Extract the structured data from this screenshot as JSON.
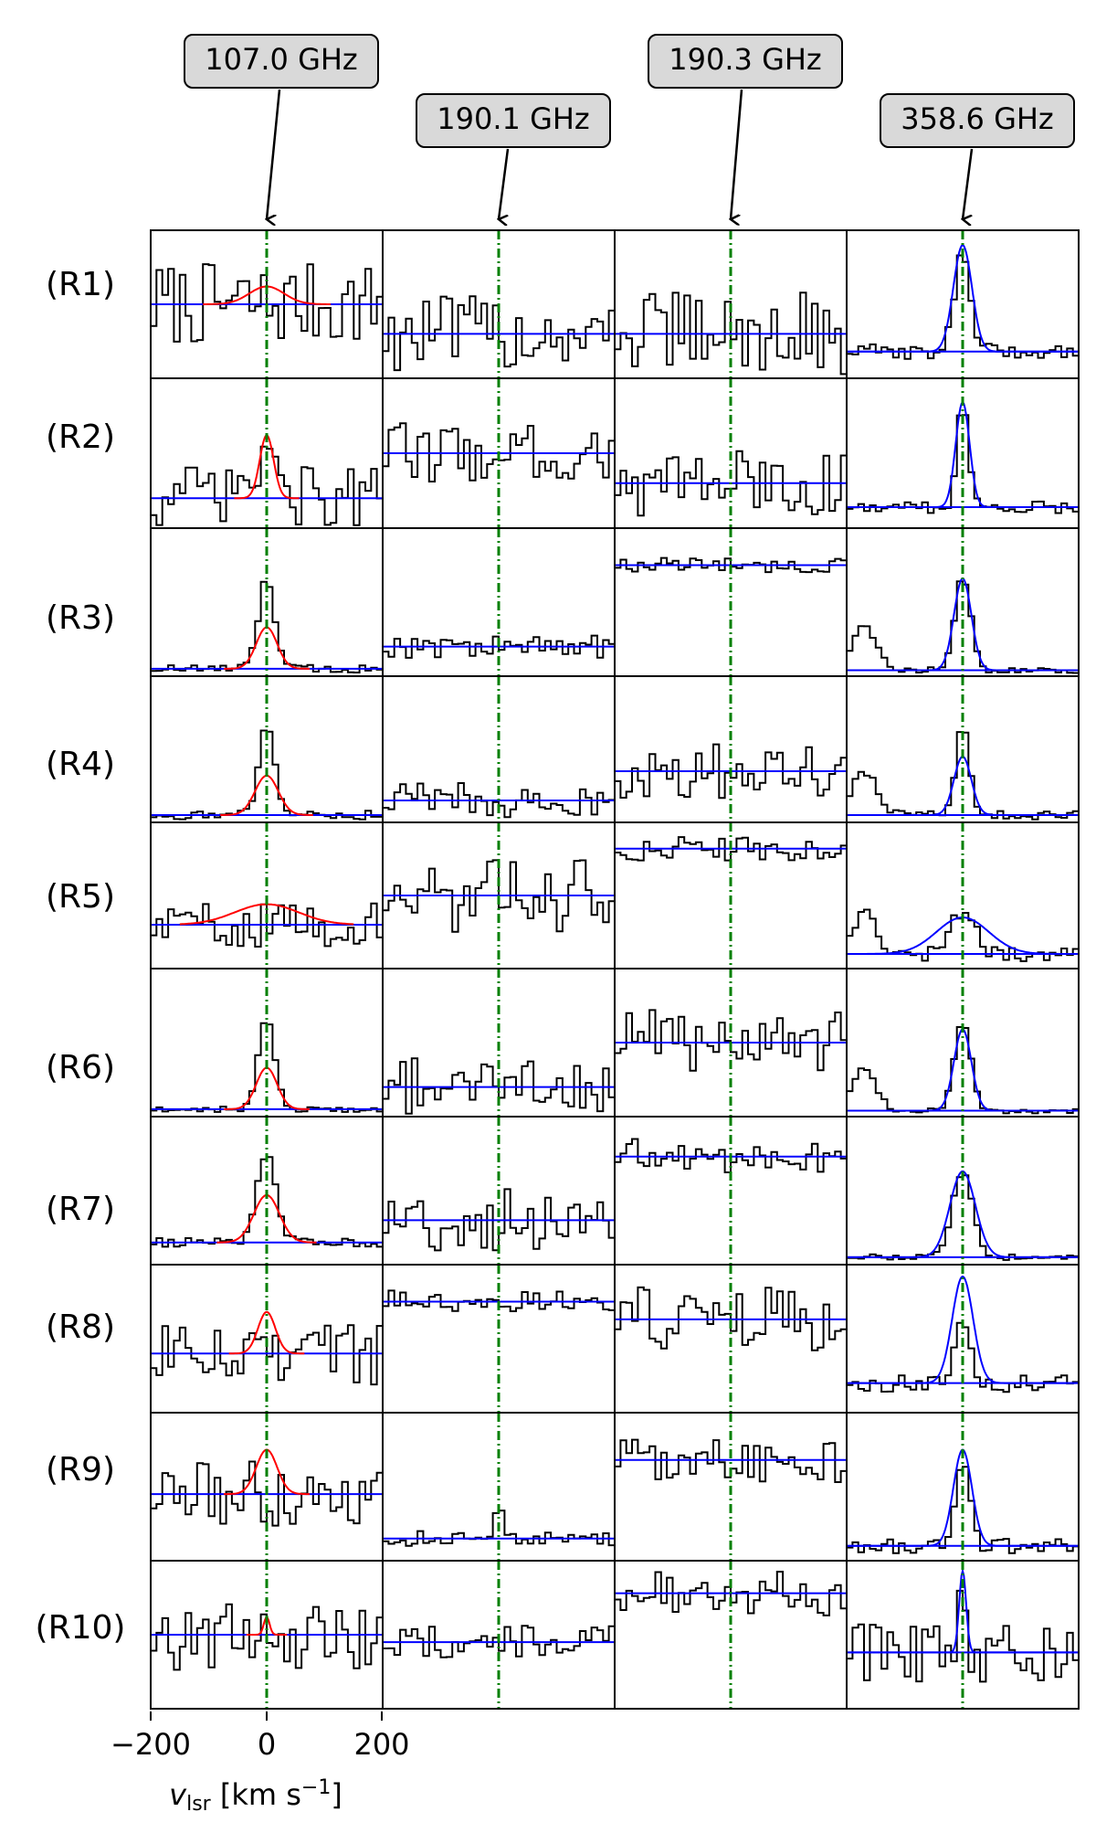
{
  "chart_data": {
    "type": "line",
    "title": "",
    "xlabel_main": "v",
    "xlabel_sub": "lsr",
    "xlabel_unit": " [km s",
    "xlabel_exp": "−1",
    "xlabel_close": "]",
    "xlim": [
      -200,
      200
    ],
    "x_ticks": [
      "−200",
      "0",
      "200"
    ],
    "columns": [
      {
        "label": "107.0 GHz",
        "fit_color": "#ff0000"
      },
      {
        "label": "190.1 GHz",
        "fit_color": null
      },
      {
        "label": "190.3 GHz",
        "fit_color": null
      },
      {
        "label": "358.6 GHz",
        "fit_color": "#0000ff"
      }
    ],
    "rows": [
      "(R1)",
      "(R2)",
      "(R3)",
      "(R4)",
      "(R5)",
      "(R6)",
      "(R7)",
      "(R8)",
      "(R9)",
      "(R10)"
    ],
    "channel_width_kms": 10,
    "marker_velocity_kms": 0,
    "panels": [
      [
        {
          "baseline": 0.5,
          "noise": 0.28,
          "peak": 0.0,
          "width": 0,
          "fit": {
            "amp": 0.12,
            "sigma": 30,
            "x0": 0
          }
        },
        {
          "baseline": 0.2,
          "noise": 0.22,
          "peak": 0.45,
          "width": 10,
          "fit": {
            "amp": 0.42,
            "sigma": 12,
            "x0": 0
          }
        },
        {
          "baseline": 0.05,
          "noise": 0.03,
          "peak": 0.6,
          "width": 14,
          "fit": {
            "amp": 0.28,
            "sigma": 18,
            "x0": 0
          }
        },
        {
          "baseline": 0.05,
          "noise": 0.03,
          "peak": 0.62,
          "width": 14,
          "fit": {
            "amp": 0.27,
            "sigma": 20,
            "x0": 0
          }
        },
        {
          "baseline": 0.3,
          "noise": 0.15,
          "peak": 0.0,
          "width": 0,
          "fit": {
            "amp": 0.14,
            "sigma": 55,
            "x0": 0
          }
        },
        {
          "baseline": 0.05,
          "noise": 0.02,
          "peak": 0.62,
          "width": 14,
          "fit": {
            "amp": 0.28,
            "sigma": 18,
            "x0": 0
          }
        },
        {
          "baseline": 0.15,
          "noise": 0.03,
          "peak": 0.62,
          "width": 16,
          "fit": {
            "amp": 0.32,
            "sigma": 22,
            "x0": 0
          }
        },
        {
          "baseline": 0.4,
          "noise": 0.22,
          "peak": 0.1,
          "width": 10,
          "fit": {
            "amp": 0.28,
            "sigma": 15,
            "x0": 0
          }
        },
        {
          "baseline": 0.45,
          "noise": 0.22,
          "peak": 0.0,
          "width": 0,
          "fit": {
            "amp": 0.3,
            "sigma": 18,
            "x0": 0
          }
        },
        {
          "baseline": 0.5,
          "noise": 0.25,
          "peak": 0.12,
          "width": 6,
          "fit": {
            "amp": 0.12,
            "sigma": 5,
            "x0": 0
          }
        }
      ],
      [
        {
          "baseline": 0.3,
          "noise": 0.26,
          "peak": 0.0,
          "width": 0,
          "fit": null
        },
        {
          "baseline": 0.5,
          "noise": 0.2,
          "peak": 0.0,
          "width": 0,
          "fit": null
        },
        {
          "baseline": 0.2,
          "noise": 0.08,
          "peak": 0.0,
          "width": 0,
          "fit": null
        },
        {
          "baseline": 0.15,
          "noise": 0.12,
          "peak": 0.0,
          "width": 0,
          "fit": null
        },
        {
          "baseline": 0.5,
          "noise": 0.25,
          "peak": 0.0,
          "width": 0,
          "fit": null
        },
        {
          "baseline": 0.2,
          "noise": 0.2,
          "peak": 0.0,
          "width": 0,
          "fit": null
        },
        {
          "baseline": 0.3,
          "noise": 0.22,
          "peak": 0.0,
          "width": 0,
          "fit": null
        },
        {
          "baseline": 0.75,
          "noise": 0.08,
          "peak": 0.0,
          "width": 0,
          "fit": null
        },
        {
          "baseline": 0.15,
          "noise": 0.05,
          "peak": 0.3,
          "width": 6,
          "fit": null
        },
        {
          "baseline": 0.45,
          "noise": 0.12,
          "peak": 0.0,
          "width": 0,
          "fit": null
        }
      ],
      [
        {
          "baseline": 0.3,
          "noise": 0.28,
          "peak": 0.0,
          "width": 0,
          "fit": null
        },
        {
          "baseline": 0.3,
          "noise": 0.22,
          "peak": 0.0,
          "width": 0,
          "fit": null
        },
        {
          "baseline": 0.75,
          "noise": 0.05,
          "peak": 0.0,
          "width": 0,
          "fit": null
        },
        {
          "baseline": 0.35,
          "noise": 0.2,
          "peak": 0.0,
          "width": 0,
          "fit": null
        },
        {
          "baseline": 0.82,
          "noise": 0.08,
          "peak": 0.0,
          "width": 0,
          "fit": null
        },
        {
          "baseline": 0.5,
          "noise": 0.22,
          "peak": 0.0,
          "width": 0,
          "fit": null
        },
        {
          "baseline": 0.73,
          "noise": 0.12,
          "peak": 0.0,
          "width": 0,
          "fit": null
        },
        {
          "baseline": 0.63,
          "noise": 0.22,
          "peak": 0.0,
          "width": 0,
          "fit": null
        },
        {
          "baseline": 0.68,
          "noise": 0.15,
          "peak": 0.0,
          "width": 0,
          "fit": null
        },
        {
          "baseline": 0.78,
          "noise": 0.15,
          "peak": 0.0,
          "width": 0,
          "fit": null
        }
      ],
      [
        {
          "baseline": 0.18,
          "noise": 0.05,
          "peak": 0.65,
          "width": 14,
          "fit": {
            "amp": 0.72,
            "sigma": 16,
            "x0": 0
          }
        },
        {
          "baseline": 0.14,
          "noise": 0.04,
          "peak": 0.7,
          "width": 10,
          "fit": {
            "amp": 0.7,
            "sigma": 12,
            "x0": 0
          }
        },
        {
          "baseline": 0.04,
          "noise": 0.02,
          "peak": 0.62,
          "width": 14,
          "fit": {
            "amp": 0.62,
            "sigma": 15,
            "x0": 0
          }
        },
        {
          "baseline": 0.05,
          "noise": 0.03,
          "peak": 0.62,
          "width": 12,
          "fit": {
            "amp": 0.4,
            "sigma": 15,
            "x0": 0
          }
        },
        {
          "baseline": 0.1,
          "noise": 0.05,
          "peak": 0.3,
          "width": 20,
          "fit": {
            "amp": 0.25,
            "sigma": 45,
            "x0": 0
          }
        },
        {
          "baseline": 0.04,
          "noise": 0.02,
          "peak": 0.6,
          "width": 14,
          "fit": {
            "amp": 0.55,
            "sigma": 15,
            "x0": 0
          }
        },
        {
          "baseline": 0.05,
          "noise": 0.02,
          "peak": 0.58,
          "width": 18,
          "fit": {
            "amp": 0.58,
            "sigma": 22,
            "x0": 0
          }
        },
        {
          "baseline": 0.2,
          "noise": 0.06,
          "peak": 0.42,
          "width": 14,
          "fit": {
            "amp": 0.72,
            "sigma": 18,
            "x0": 0
          }
        },
        {
          "baseline": 0.1,
          "noise": 0.05,
          "peak": 0.6,
          "width": 12,
          "fit": {
            "amp": 0.65,
            "sigma": 16,
            "x0": 0
          }
        },
        {
          "baseline": 0.38,
          "noise": 0.2,
          "peak": 0.5,
          "width": 6,
          "fit": {
            "amp": 0.55,
            "sigma": 6,
            "x0": 0
          }
        }
      ]
    ]
  }
}
